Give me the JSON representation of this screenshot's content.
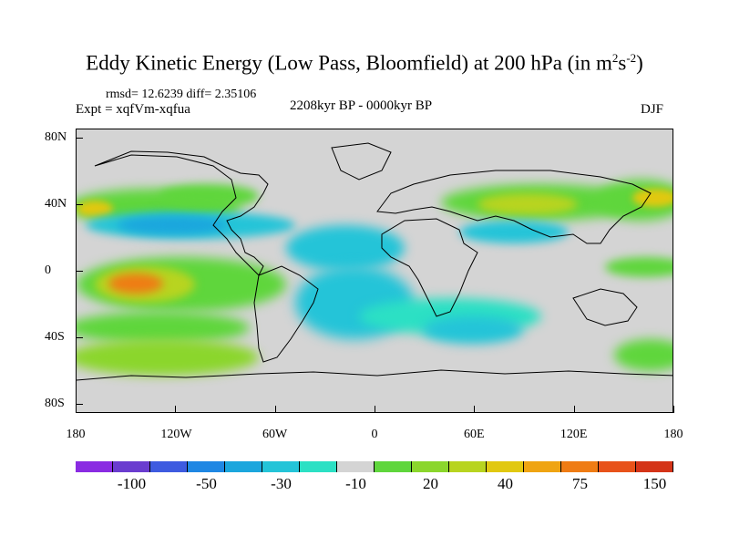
{
  "title": {
    "main": "Eddy Kinetic Energy (Low Pass, Bloomfield) at 200 hPa (in m",
    "sup1": "2",
    "mid": "s",
    "sup2": "-2",
    "end": ")"
  },
  "stats": "rmsd= 12.6239  diff= 2.35106",
  "experiment": "Expt = xqfVm-xqfua",
  "period": "2208kyr BP - 0000kyr BP",
  "season": "DJF",
  "map": {
    "lat_labels": [
      "80N",
      "40N",
      "0",
      "40S",
      "80S"
    ],
    "lon_labels": [
      "180",
      "120W",
      "60W",
      "0",
      "60E",
      "120E",
      "180"
    ]
  },
  "colorbar": {
    "colors": [
      "#8a2be2",
      "#6a3ccf",
      "#3e5be0",
      "#1f87e3",
      "#1ba6dd",
      "#24c4d8",
      "#2ce0c4",
      "#d4d4d4",
      "#5fd63c",
      "#8bd62c",
      "#b8d420",
      "#e1c810",
      "#efa412",
      "#ef7c14",
      "#e8521a",
      "#d43418"
    ],
    "labels": [
      "-100",
      "-50",
      "-30",
      "-10",
      "20",
      "40",
      "75",
      "150"
    ]
  }
}
